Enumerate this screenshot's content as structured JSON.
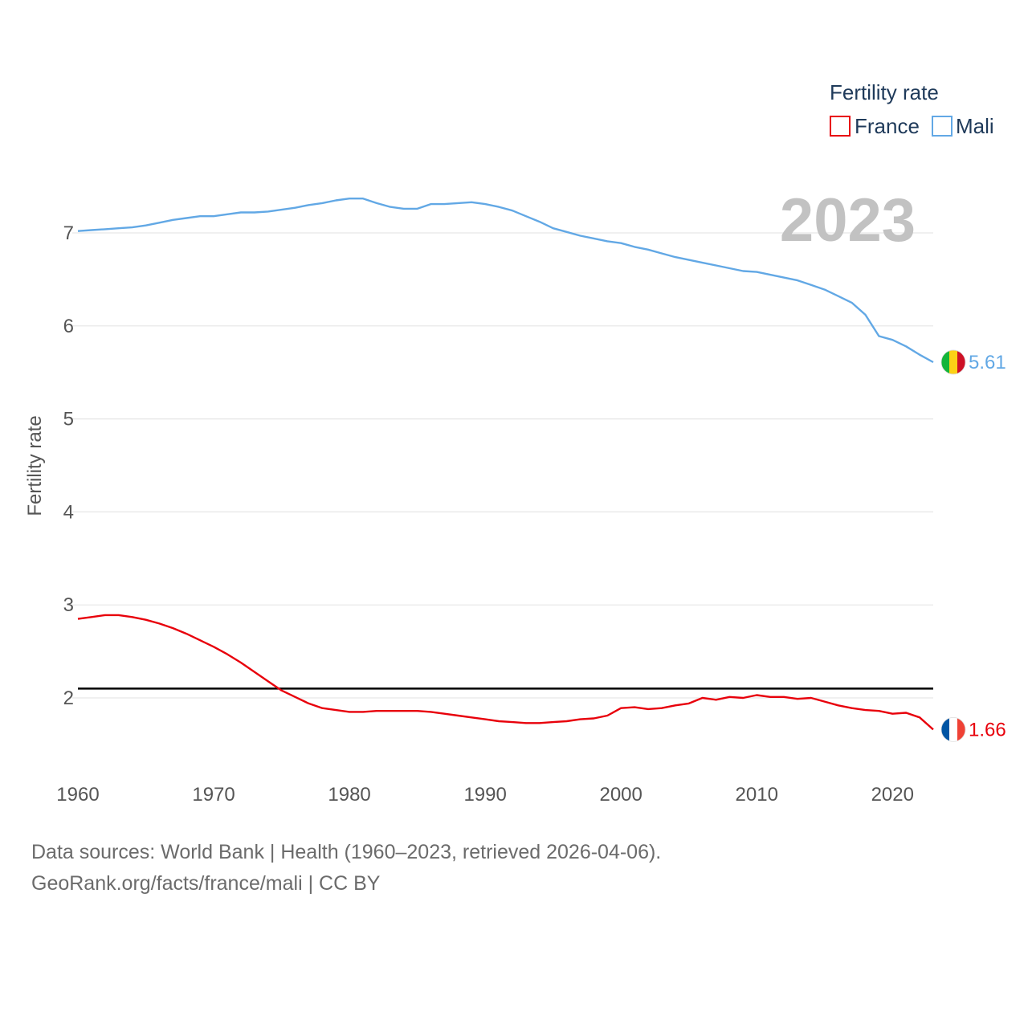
{
  "chart_data": {
    "type": "line",
    "title": "",
    "current_year": "2023",
    "ylabel": "Fertility rate",
    "xlabel": "",
    "xlim": [
      1960,
      2023
    ],
    "ylim": [
      1.3,
      7.8
    ],
    "yticks": [
      2,
      3,
      4,
      5,
      6,
      7
    ],
    "xticks": [
      1960,
      1970,
      1980,
      1990,
      2000,
      2010,
      2020
    ],
    "legend": {
      "title": "Fertility rate",
      "position": "top-right",
      "items": [
        "France",
        "Mali"
      ]
    },
    "reference_line": {
      "value": 2.1,
      "color": "#000000"
    },
    "series": [
      {
        "name": "France",
        "color": "#e8000b",
        "flag": "france-flag",
        "end_label": "1.66",
        "x": [
          1960,
          1961,
          1962,
          1963,
          1964,
          1965,
          1966,
          1967,
          1968,
          1969,
          1970,
          1971,
          1972,
          1973,
          1974,
          1975,
          1976,
          1977,
          1978,
          1979,
          1980,
          1981,
          1982,
          1983,
          1984,
          1985,
          1986,
          1987,
          1988,
          1989,
          1990,
          1991,
          1992,
          1993,
          1994,
          1995,
          1996,
          1997,
          1998,
          1999,
          2000,
          2001,
          2002,
          2003,
          2004,
          2005,
          2006,
          2007,
          2008,
          2009,
          2010,
          2011,
          2012,
          2013,
          2014,
          2015,
          2016,
          2017,
          2018,
          2019,
          2020,
          2021,
          2022,
          2023
        ],
        "values": [
          2.85,
          2.87,
          2.89,
          2.89,
          2.87,
          2.84,
          2.8,
          2.75,
          2.69,
          2.62,
          2.55,
          2.47,
          2.38,
          2.28,
          2.18,
          2.08,
          2.01,
          1.94,
          1.89,
          1.87,
          1.85,
          1.85,
          1.86,
          1.86,
          1.86,
          1.86,
          1.85,
          1.83,
          1.81,
          1.79,
          1.77,
          1.75,
          1.74,
          1.73,
          1.73,
          1.74,
          1.75,
          1.77,
          1.78,
          1.81,
          1.89,
          1.9,
          1.88,
          1.89,
          1.92,
          1.94,
          2.0,
          1.98,
          2.01,
          2.0,
          2.03,
          2.01,
          2.01,
          1.99,
          2.0,
          1.96,
          1.92,
          1.89,
          1.87,
          1.86,
          1.83,
          1.84,
          1.79,
          1.66
        ]
      },
      {
        "name": "Mali",
        "color": "#62a8e5",
        "flag": "mali-flag",
        "end_label": "5.61",
        "x": [
          1960,
          1961,
          1962,
          1963,
          1964,
          1965,
          1966,
          1967,
          1968,
          1969,
          1970,
          1971,
          1972,
          1973,
          1974,
          1975,
          1976,
          1977,
          1978,
          1979,
          1980,
          1981,
          1982,
          1983,
          1984,
          1985,
          1986,
          1987,
          1988,
          1989,
          1990,
          1991,
          1992,
          1993,
          1994,
          1995,
          1996,
          1997,
          1998,
          1999,
          2000,
          2001,
          2002,
          2003,
          2004,
          2005,
          2006,
          2007,
          2008,
          2009,
          2010,
          2011,
          2012,
          2013,
          2014,
          2015,
          2016,
          2017,
          2018,
          2019,
          2020,
          2021,
          2022,
          2023
        ],
        "values": [
          7.02,
          7.03,
          7.04,
          7.05,
          7.06,
          7.08,
          7.11,
          7.14,
          7.16,
          7.18,
          7.18,
          7.2,
          7.22,
          7.22,
          7.23,
          7.25,
          7.27,
          7.3,
          7.32,
          7.35,
          7.37,
          7.37,
          7.32,
          7.28,
          7.26,
          7.26,
          7.31,
          7.31,
          7.32,
          7.33,
          7.31,
          7.28,
          7.24,
          7.18,
          7.12,
          7.05,
          7.01,
          6.97,
          6.94,
          6.91,
          6.89,
          6.85,
          6.82,
          6.78,
          6.74,
          6.71,
          6.68,
          6.65,
          6.62,
          6.59,
          6.58,
          6.55,
          6.52,
          6.49,
          6.44,
          6.39,
          6.32,
          6.25,
          6.12,
          5.89,
          5.85,
          5.78,
          5.69,
          5.61
        ]
      }
    ]
  },
  "footer": {
    "sources": "Data sources: World Bank | Health (1960–2023, retrieved 2026-04-06).",
    "link": "GeoRank.org/facts/france/mali | CC BY"
  }
}
